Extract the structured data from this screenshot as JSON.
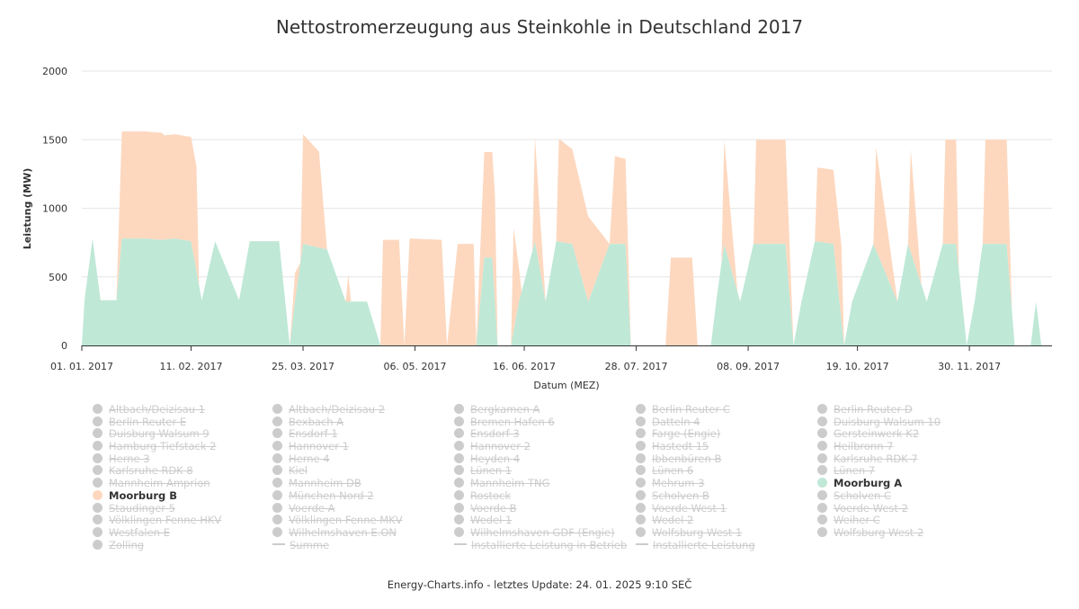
{
  "colors": {
    "moorburg_b": "#fdd8bf",
    "moorburg_a": "#bfe8d7",
    "legend_off": "#cccccc",
    "grid": "#e6e6e6",
    "axis": "#333333"
  },
  "chart_data": {
    "type": "area",
    "stacked": true,
    "title": "Nettostromerzeugung aus Steinkohle in Deutschland 2017",
    "xlabel": "Datum (MEZ)",
    "ylabel": "Leistung (MW)",
    "ylim": [
      0,
      2000
    ],
    "yticks": [
      "0",
      "500",
      "1000",
      "1500",
      "2000"
    ],
    "xlim": [
      "2017-01-01",
      "2017-12-31"
    ],
    "xticks": [
      {
        "date": "2017-01-01",
        "label": "01. 01. 2017"
      },
      {
        "date": "2017-02-11",
        "label": "11. 02. 2017"
      },
      {
        "date": "2017-03-25",
        "label": "25. 03. 2017"
      },
      {
        "date": "2017-05-06",
        "label": "06. 05. 2017"
      },
      {
        "date": "2017-06-16",
        "label": "16. 06. 2017"
      },
      {
        "date": "2017-07-28",
        "label": "28. 07. 2017"
      },
      {
        "date": "2017-09-08",
        "label": "08. 09. 2017"
      },
      {
        "date": "2017-10-19",
        "label": "19. 10. 2017"
      },
      {
        "date": "2017-11-30",
        "label": "30. 11. 2017"
      }
    ],
    "grid": true,
    "legend_position": "bottom",
    "series": [
      {
        "name": "Moorburg A",
        "color": "#bfe8d7",
        "points": [
          [
            "2017-01-01",
            0
          ],
          [
            "2017-01-02",
            330
          ],
          [
            "2017-01-05",
            780
          ],
          [
            "2017-01-08",
            330
          ],
          [
            "2017-01-14",
            330
          ],
          [
            "2017-01-16",
            780
          ],
          [
            "2017-01-25",
            780
          ],
          [
            "2017-01-31",
            770
          ],
          [
            "2017-02-05",
            780
          ],
          [
            "2017-02-11",
            760
          ],
          [
            "2017-02-15",
            330
          ],
          [
            "2017-02-20",
            760
          ],
          [
            "2017-03-01",
            330
          ],
          [
            "2017-03-05",
            760
          ],
          [
            "2017-03-16",
            760
          ],
          [
            "2017-03-20",
            0
          ],
          [
            "2017-03-22",
            330
          ],
          [
            "2017-03-25",
            740
          ],
          [
            "2017-04-03",
            700
          ],
          [
            "2017-04-10",
            320
          ],
          [
            "2017-04-18",
            320
          ],
          [
            "2017-04-23",
            0
          ],
          [
            "2017-05-29",
            0
          ],
          [
            "2017-06-01",
            640
          ],
          [
            "2017-06-04",
            640
          ],
          [
            "2017-06-06",
            0
          ],
          [
            "2017-06-11",
            0
          ],
          [
            "2017-06-14",
            320
          ],
          [
            "2017-06-20",
            760
          ],
          [
            "2017-06-24",
            320
          ],
          [
            "2017-06-28",
            760
          ],
          [
            "2017-07-04",
            740
          ],
          [
            "2017-07-10",
            320
          ],
          [
            "2017-07-18",
            740
          ],
          [
            "2017-07-24",
            740
          ],
          [
            "2017-07-26",
            0
          ],
          [
            "2017-08-25",
            0
          ],
          [
            "2017-08-27",
            320
          ],
          [
            "2017-08-30",
            740
          ],
          [
            "2017-09-05",
            320
          ],
          [
            "2017-09-10",
            740
          ],
          [
            "2017-09-22",
            740
          ],
          [
            "2017-09-25",
            0
          ],
          [
            "2017-09-28",
            320
          ],
          [
            "2017-10-03",
            760
          ],
          [
            "2017-10-10",
            740
          ],
          [
            "2017-10-14",
            0
          ],
          [
            "2017-10-17",
            320
          ],
          [
            "2017-10-25",
            740
          ],
          [
            "2017-11-03",
            320
          ],
          [
            "2017-11-07",
            740
          ],
          [
            "2017-11-14",
            320
          ],
          [
            "2017-11-20",
            740
          ],
          [
            "2017-11-25",
            740
          ],
          [
            "2017-11-29",
            0
          ],
          [
            "2017-12-02",
            320
          ],
          [
            "2017-12-05",
            740
          ],
          [
            "2017-12-14",
            740
          ],
          [
            "2017-12-17",
            0
          ],
          [
            "2017-12-23",
            0
          ],
          [
            "2017-12-25",
            320
          ],
          [
            "2017-12-27",
            0
          ],
          [
            "2017-12-31",
            0
          ]
        ]
      },
      {
        "name": "Moorburg B",
        "color": "#fdd8bf",
        "points": [
          [
            "2017-01-01",
            0
          ],
          [
            "2017-01-10",
            0
          ],
          [
            "2017-01-14",
            0
          ],
          [
            "2017-01-16",
            780
          ],
          [
            "2017-01-18",
            780
          ],
          [
            "2017-01-31",
            780
          ],
          [
            "2017-02-01",
            760
          ],
          [
            "2017-02-13",
            760
          ],
          [
            "2017-02-14",
            0
          ],
          [
            "2017-03-20",
            0
          ],
          [
            "2017-03-22",
            200
          ],
          [
            "2017-03-24",
            0
          ],
          [
            "2017-03-25",
            800
          ],
          [
            "2017-03-31",
            700
          ],
          [
            "2017-04-03",
            0
          ],
          [
            "2017-04-10",
            0
          ],
          [
            "2017-04-11",
            200
          ],
          [
            "2017-04-12",
            0
          ],
          [
            "2017-04-23",
            0
          ],
          [
            "2017-04-24",
            770
          ],
          [
            "2017-04-30",
            770
          ],
          [
            "2017-05-02",
            0
          ],
          [
            "2017-05-04",
            780
          ],
          [
            "2017-05-16",
            770
          ],
          [
            "2017-05-18",
            0
          ],
          [
            "2017-05-22",
            740
          ],
          [
            "2017-05-28",
            740
          ],
          [
            "2017-05-29",
            0
          ],
          [
            "2017-06-01",
            770
          ],
          [
            "2017-06-05",
            770
          ],
          [
            "2017-06-06",
            0
          ],
          [
            "2017-06-11",
            0
          ],
          [
            "2017-06-12",
            750
          ],
          [
            "2017-06-15",
            0
          ],
          [
            "2017-06-19",
            0
          ],
          [
            "2017-06-20",
            760
          ],
          [
            "2017-06-24",
            0
          ],
          [
            "2017-06-28",
            0
          ],
          [
            "2017-06-29",
            750
          ],
          [
            "2017-07-10",
            620
          ],
          [
            "2017-07-18",
            0
          ],
          [
            "2017-07-20",
            640
          ],
          [
            "2017-07-24",
            620
          ],
          [
            "2017-07-26",
            0
          ],
          [
            "2017-08-08",
            0
          ],
          [
            "2017-08-10",
            640
          ],
          [
            "2017-08-18",
            640
          ],
          [
            "2017-08-20",
            0
          ],
          [
            "2017-08-29",
            0
          ],
          [
            "2017-08-30",
            760
          ],
          [
            "2017-09-04",
            0
          ],
          [
            "2017-09-10",
            0
          ],
          [
            "2017-09-11",
            760
          ],
          [
            "2017-09-22",
            760
          ],
          [
            "2017-09-25",
            0
          ],
          [
            "2017-10-03",
            0
          ],
          [
            "2017-10-04",
            540
          ],
          [
            "2017-10-13",
            540
          ],
          [
            "2017-10-14",
            0
          ],
          [
            "2017-10-25",
            0
          ],
          [
            "2017-10-26",
            750
          ],
          [
            "2017-11-03",
            0
          ],
          [
            "2017-11-07",
            0
          ],
          [
            "2017-11-08",
            750
          ],
          [
            "2017-11-12",
            0
          ],
          [
            "2017-11-20",
            0
          ],
          [
            "2017-11-21",
            760
          ],
          [
            "2017-11-25",
            760
          ],
          [
            "2017-11-26",
            0
          ],
          [
            "2017-12-05",
            0
          ],
          [
            "2017-12-06",
            760
          ],
          [
            "2017-12-14",
            760
          ],
          [
            "2017-12-16",
            0
          ],
          [
            "2017-12-31",
            0
          ]
        ]
      }
    ]
  },
  "legend": {
    "columns": [
      [
        {
          "label": "Altbach/Deizisau 1",
          "on": false,
          "kind": "circle"
        },
        {
          "label": "Berlin Reuter E",
          "on": false,
          "kind": "circle"
        },
        {
          "label": "Duisburg Walsum 9",
          "on": false,
          "kind": "circle"
        },
        {
          "label": "Hamburg Tiefstack 2",
          "on": false,
          "kind": "circle"
        },
        {
          "label": "Herne 3",
          "on": false,
          "kind": "circle"
        },
        {
          "label": "Karlsruhe RDK 8",
          "on": false,
          "kind": "circle"
        },
        {
          "label": "Mannheim Amprion",
          "on": false,
          "kind": "circle"
        },
        {
          "label": "Moorburg B",
          "on": true,
          "kind": "circle",
          "color": "#fdd8bf"
        },
        {
          "label": "Staudinger 5",
          "on": false,
          "kind": "circle"
        },
        {
          "label": "Völklingen Fenne HKV",
          "on": false,
          "kind": "circle"
        },
        {
          "label": "Westfalen E",
          "on": false,
          "kind": "circle"
        },
        {
          "label": "Zolling",
          "on": false,
          "kind": "circle"
        }
      ],
      [
        {
          "label": "Altbach/Deizisau 2",
          "on": false,
          "kind": "circle"
        },
        {
          "label": "Bexbach A",
          "on": false,
          "kind": "circle"
        },
        {
          "label": "Ensdorf 1",
          "on": false,
          "kind": "circle"
        },
        {
          "label": "Hannover 1",
          "on": false,
          "kind": "circle"
        },
        {
          "label": "Herne 4",
          "on": false,
          "kind": "circle"
        },
        {
          "label": "Kiel",
          "on": false,
          "kind": "circle"
        },
        {
          "label": "Mannheim DB",
          "on": false,
          "kind": "circle"
        },
        {
          "label": "München Nord 2",
          "on": false,
          "kind": "circle"
        },
        {
          "label": "Voerde A",
          "on": false,
          "kind": "circle"
        },
        {
          "label": "Völklingen Fenne MKV",
          "on": false,
          "kind": "circle"
        },
        {
          "label": "Wilhelmshaven E.ON",
          "on": false,
          "kind": "circle"
        },
        {
          "label": "Summe",
          "on": false,
          "kind": "line"
        }
      ],
      [
        {
          "label": "Bergkamen A",
          "on": false,
          "kind": "circle"
        },
        {
          "label": "Bremen Hafen 6",
          "on": false,
          "kind": "circle"
        },
        {
          "label": "Ensdorf 3",
          "on": false,
          "kind": "circle"
        },
        {
          "label": "Hannover 2",
          "on": false,
          "kind": "circle"
        },
        {
          "label": "Heyden 4",
          "on": false,
          "kind": "circle"
        },
        {
          "label": "Lünen 1",
          "on": false,
          "kind": "circle"
        },
        {
          "label": "Mannheim TNG",
          "on": false,
          "kind": "circle"
        },
        {
          "label": "Rostock",
          "on": false,
          "kind": "circle"
        },
        {
          "label": "Voerde B",
          "on": false,
          "kind": "circle"
        },
        {
          "label": "Wedel 1",
          "on": false,
          "kind": "circle"
        },
        {
          "label": "Wilhelmshaven GDF (Engie)",
          "on": false,
          "kind": "circle"
        },
        {
          "label": "Installierte Leistung in Betrieb",
          "on": false,
          "kind": "line"
        }
      ],
      [
        {
          "label": "Berlin Reuter C",
          "on": false,
          "kind": "circle"
        },
        {
          "label": "Datteln 4",
          "on": false,
          "kind": "circle"
        },
        {
          "label": "Farge (Engie)",
          "on": false,
          "kind": "circle"
        },
        {
          "label": "Hastedt 15",
          "on": false,
          "kind": "circle"
        },
        {
          "label": "Ibbenbüren B",
          "on": false,
          "kind": "circle"
        },
        {
          "label": "Lünen 6",
          "on": false,
          "kind": "circle"
        },
        {
          "label": "Mehrum 3",
          "on": false,
          "kind": "circle"
        },
        {
          "label": "Scholven B",
          "on": false,
          "kind": "circle"
        },
        {
          "label": "Voerde West 1",
          "on": false,
          "kind": "circle"
        },
        {
          "label": "Wedel 2",
          "on": false,
          "kind": "circle"
        },
        {
          "label": "Wolfsburg West 1",
          "on": false,
          "kind": "circle"
        },
        {
          "label": "Installierte Leistung",
          "on": false,
          "kind": "line"
        }
      ],
      [
        {
          "label": "Berlin Reuter D",
          "on": false,
          "kind": "circle"
        },
        {
          "label": "Duisburg Walsum 10",
          "on": false,
          "kind": "circle"
        },
        {
          "label": "Gersteinwerk K2",
          "on": false,
          "kind": "circle"
        },
        {
          "label": "Heilbronn 7",
          "on": false,
          "kind": "circle"
        },
        {
          "label": "Karlsruhe RDK 7",
          "on": false,
          "kind": "circle"
        },
        {
          "label": "Lünen 7",
          "on": false,
          "kind": "circle"
        },
        {
          "label": "Moorburg A",
          "on": true,
          "kind": "circle",
          "color": "#bfe8d7"
        },
        {
          "label": "Scholven C",
          "on": false,
          "kind": "circle"
        },
        {
          "label": "Voerde West 2",
          "on": false,
          "kind": "circle"
        },
        {
          "label": "Weiher C",
          "on": false,
          "kind": "circle"
        },
        {
          "label": "Wolfsburg West 2",
          "on": false,
          "kind": "circle"
        }
      ]
    ]
  },
  "footer": "Energy-Charts.info - letztes Update: 24. 01. 2025 9:10 SEČ"
}
